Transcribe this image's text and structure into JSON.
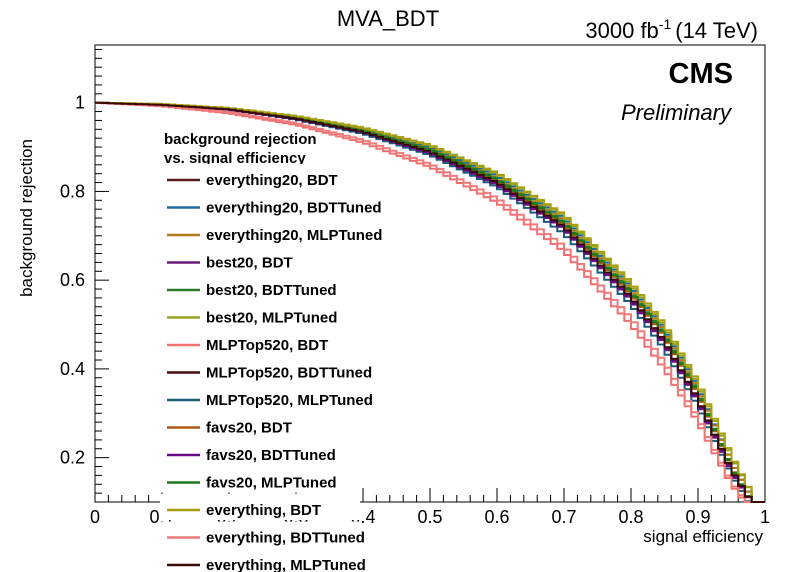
{
  "chart_data": {
    "type": "line",
    "title": "MVA_BDT",
    "luminosity": {
      "main": "3000 fb",
      "exponent": "-1",
      "energy": "(14 TeV)"
    },
    "experiment": "CMS",
    "status": "Preliminary",
    "xlabel": "signal efficiency",
    "ylabel": "background rejection",
    "xlim": [
      0,
      1
    ],
    "ylim": [
      0.1,
      1.13
    ],
    "x_ticks": [
      "0",
      "0.1",
      "0.2",
      "0.3",
      "0.4",
      "0.5",
      "0.6",
      "0.7",
      "0.8",
      "0.9",
      "1"
    ],
    "y_ticks": [
      "0.2",
      "0.4",
      "0.6",
      "0.8",
      "1"
    ],
    "grid": false,
    "legend": {
      "position": "left",
      "header_lines": [
        "background rejection",
        "vs. signal efficiency"
      ]
    },
    "x": [
      0.0,
      0.1,
      0.2,
      0.3,
      0.4,
      0.5,
      0.6,
      0.7,
      0.8,
      0.85,
      0.9,
      0.95,
      0.98,
      1.0
    ],
    "series": [
      {
        "name": "everything20, BDT",
        "color": "#5c1a1a",
        "values": [
          1.0,
          0.995,
          0.985,
          0.965,
          0.935,
          0.89,
          0.82,
          0.72,
          0.56,
          0.46,
          0.33,
          0.17,
          0.1,
          0.0
        ]
      },
      {
        "name": "everything20, BDTTuned",
        "color": "#1f6a9a",
        "values": [
          1.0,
          0.996,
          0.987,
          0.968,
          0.94,
          0.9,
          0.835,
          0.74,
          0.585,
          0.49,
          0.36,
          0.19,
          0.11,
          0.0
        ]
      },
      {
        "name": "everything20, MLPTuned",
        "color": "#b07a1a",
        "values": [
          1.0,
          0.996,
          0.986,
          0.967,
          0.938,
          0.896,
          0.83,
          0.735,
          0.58,
          0.485,
          0.355,
          0.19,
          0.11,
          0.0
        ]
      },
      {
        "name": "best20, BDT",
        "color": "#6a1a7a",
        "values": [
          1.0,
          0.995,
          0.984,
          0.963,
          0.932,
          0.885,
          0.815,
          0.715,
          0.555,
          0.455,
          0.325,
          0.165,
          0.1,
          0.0
        ]
      },
      {
        "name": "best20, BDTTuned",
        "color": "#2a7a2a",
        "values": [
          1.0,
          0.996,
          0.986,
          0.966,
          0.937,
          0.895,
          0.828,
          0.73,
          0.575,
          0.48,
          0.35,
          0.18,
          0.1,
          0.0
        ]
      },
      {
        "name": "best20, MLPTuned",
        "color": "#9aa21a",
        "values": [
          1.0,
          0.997,
          0.988,
          0.97,
          0.943,
          0.903,
          0.84,
          0.745,
          0.59,
          0.495,
          0.365,
          0.2,
          0.12,
          0.0
        ]
      },
      {
        "name": "MLPTop520, BDT",
        "color": "#f07070",
        "values": [
          1.0,
          0.992,
          0.976,
          0.95,
          0.91,
          0.855,
          0.775,
          0.665,
          0.5,
          0.4,
          0.28,
          0.14,
          0.08,
          0.0
        ]
      },
      {
        "name": "MLPTop520, BDTTuned",
        "color": "#4a0a0a",
        "values": [
          1.0,
          0.995,
          0.985,
          0.964,
          0.934,
          0.888,
          0.818,
          0.718,
          0.56,
          0.46,
          0.33,
          0.17,
          0.1,
          0.0
        ]
      },
      {
        "name": "MLPTop520, MLPTuned",
        "color": "#1a5a7a",
        "values": [
          1.0,
          0.995,
          0.984,
          0.962,
          0.93,
          0.882,
          0.81,
          0.705,
          0.545,
          0.445,
          0.315,
          0.16,
          0.09,
          0.0
        ]
      },
      {
        "name": "favs20, BDT",
        "color": "#b05a10",
        "values": [
          1.0,
          0.996,
          0.985,
          0.965,
          0.936,
          0.892,
          0.824,
          0.725,
          0.568,
          0.472,
          0.342,
          0.177,
          0.1,
          0.0
        ]
      },
      {
        "name": "favs20, BDTTuned",
        "color": "#6a0a8a",
        "values": [
          1.0,
          0.995,
          0.984,
          0.963,
          0.933,
          0.886,
          0.816,
          0.716,
          0.557,
          0.457,
          0.327,
          0.167,
          0.1,
          0.0
        ]
      },
      {
        "name": "favs20, MLPTuned",
        "color": "#1a7a1a",
        "values": [
          1.0,
          0.996,
          0.986,
          0.966,
          0.936,
          0.893,
          0.826,
          0.728,
          0.572,
          0.476,
          0.346,
          0.178,
          0.1,
          0.0
        ]
      },
      {
        "name": "everything, BDT",
        "color": "#a8a010",
        "values": [
          1.0,
          0.997,
          0.988,
          0.97,
          0.944,
          0.905,
          0.842,
          0.748,
          0.595,
          0.5,
          0.37,
          0.205,
          0.12,
          0.0
        ]
      },
      {
        "name": "everything, BDTTuned",
        "color": "#f07a7a",
        "values": [
          1.0,
          0.993,
          0.979,
          0.954,
          0.916,
          0.862,
          0.785,
          0.677,
          0.515,
          0.415,
          0.29,
          0.145,
          0.085,
          0.0
        ]
      },
      {
        "name": "everything, MLPTuned",
        "color": "#3a0a0a",
        "values": [
          1.0,
          0.995,
          0.985,
          0.964,
          0.934,
          0.889,
          0.82,
          0.72,
          0.562,
          0.462,
          0.332,
          0.172,
          0.1,
          0.0
        ]
      }
    ]
  }
}
